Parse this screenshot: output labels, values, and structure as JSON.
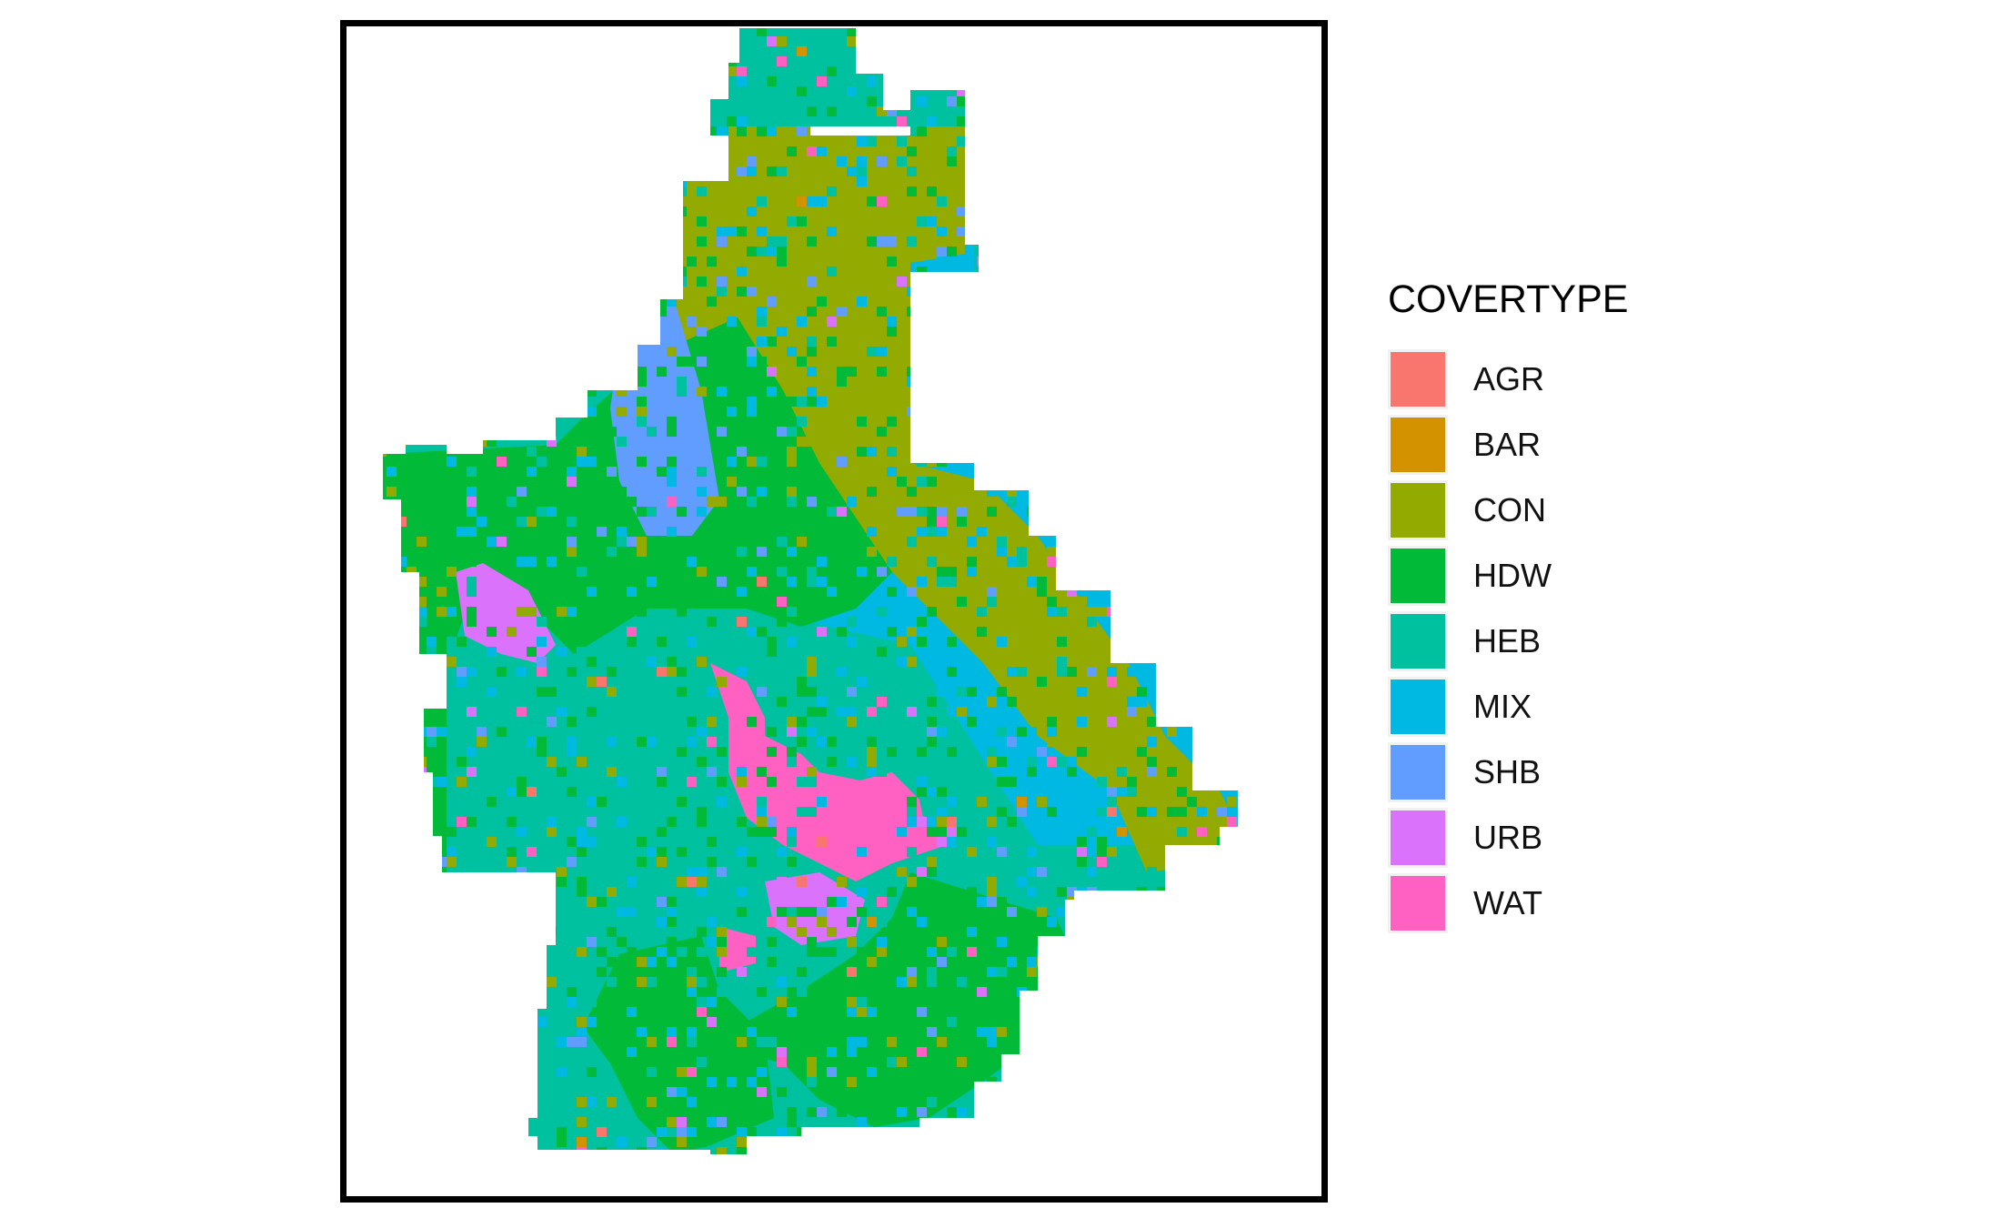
{
  "legend": {
    "title": "COVERTYPE",
    "items": [
      {
        "label": "AGR",
        "color": "#F8766D"
      },
      {
        "label": "BAR",
        "color": "#D39200"
      },
      {
        "label": "CON",
        "color": "#93AA00"
      },
      {
        "label": "HDW",
        "color": "#00BA38"
      },
      {
        "label": "HEB",
        "color": "#00C19F"
      },
      {
        "label": "MIX",
        "color": "#00B9E3"
      },
      {
        "label": "SHB",
        "color": "#619CFF"
      },
      {
        "label": "URB",
        "color": "#DB72FB"
      },
      {
        "label": "WAT",
        "color": "#FF61C3"
      }
    ]
  }
}
